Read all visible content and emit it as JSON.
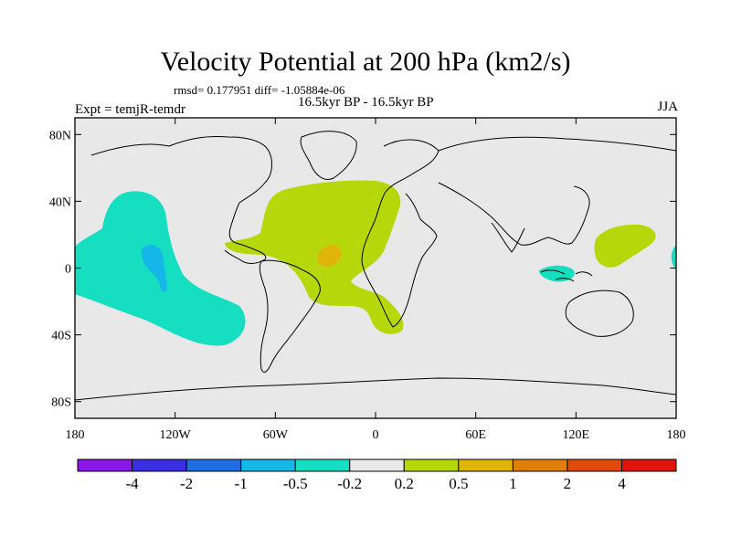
{
  "title": "Velocity Potential at 200 hPa (km2/s)",
  "stats": "rmsd= 0.177951 diff= -1.05884e-06",
  "period": "16.5kyr BP - 16.5kyr BP",
  "expt": "Expt = temjR-temdr",
  "season": "JJA",
  "lat_labels": [
    "80N",
    "40N",
    "0",
    "40S",
    "80S"
  ],
  "lat_values": [
    80,
    40,
    0,
    -40,
    -80
  ],
  "lon_labels": [
    "180",
    "120W",
    "60W",
    "0",
    "60E",
    "120E",
    "180"
  ],
  "lon_values": [
    -180,
    -120,
    -60,
    0,
    60,
    120,
    180
  ],
  "colorbar": {
    "labels": [
      "-4",
      "-2",
      "-1",
      "-0.5",
      "-0.2",
      "0.2",
      "0.5",
      "1",
      "2",
      "4"
    ],
    "colors": [
      "#8a17e6",
      "#3a2fe0",
      "#1e6ee0",
      "#14b7e8",
      "#15dfc0",
      "#e8e8e8",
      "#b6d80a",
      "#e0b40a",
      "#e07e0c",
      "#e04a0a",
      "#e0140c"
    ]
  },
  "fields": [
    {
      "name": "pacific-negative-anomaly",
      "level": "-0.5",
      "color": "#15dfc0"
    },
    {
      "name": "pacific-core-negative",
      "level": "-1",
      "color": "#14b7e8"
    },
    {
      "name": "atlantic-positive-anomaly",
      "level": "0.5",
      "color": "#b6d80a"
    },
    {
      "name": "atlantic-core-positive",
      "level": "1",
      "color": "#e0b40a"
    },
    {
      "name": "west-pacific-positive-anomaly",
      "level": "0.5",
      "color": "#b6d80a"
    },
    {
      "name": "indonesia-negative-anomaly",
      "level": "-0.5",
      "color": "#15dfc0"
    }
  ]
}
